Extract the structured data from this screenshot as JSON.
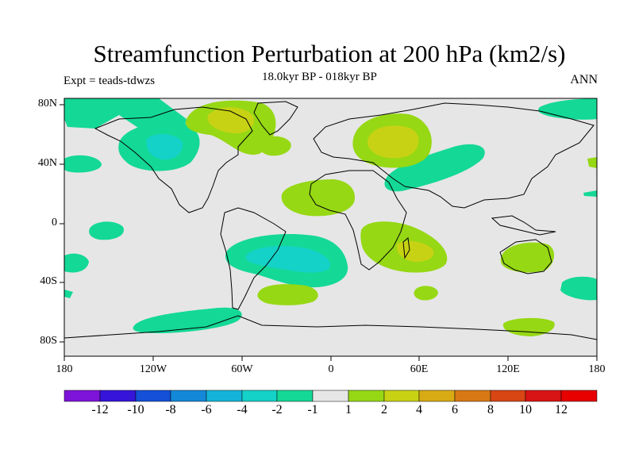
{
  "title": "Streamfunction Perturbation at 200 hPa (km2/s)",
  "subtitle": "18.0kyr BP - 018kyr BP",
  "expt_label": "Expt = teads-tdwzs",
  "period": "ANN",
  "lat_ticks": [
    "80N",
    "40N",
    "0",
    "40S",
    "80S"
  ],
  "lon_ticks": [
    "180",
    "120W",
    "60W",
    "0",
    "60E",
    "120E",
    "180"
  ],
  "colorbar": {
    "labels": [
      "-12",
      "-10",
      "-8",
      "-6",
      "-4",
      "-2",
      "-1",
      "1",
      "2",
      "4",
      "6",
      "8",
      "10",
      "12"
    ],
    "colors": [
      "#7d14d8",
      "#3614d8",
      "#1450d8",
      "#1488d8",
      "#14b4d8",
      "#14d2c8",
      "#14d896",
      "#e6e6e6",
      "#96d814",
      "#c8d214",
      "#d8aa14",
      "#d87814",
      "#d84614",
      "#d81414",
      "#e60000"
    ]
  },
  "colors": {
    "background_field": "#e6e6e6",
    "coast": "#000000"
  }
}
